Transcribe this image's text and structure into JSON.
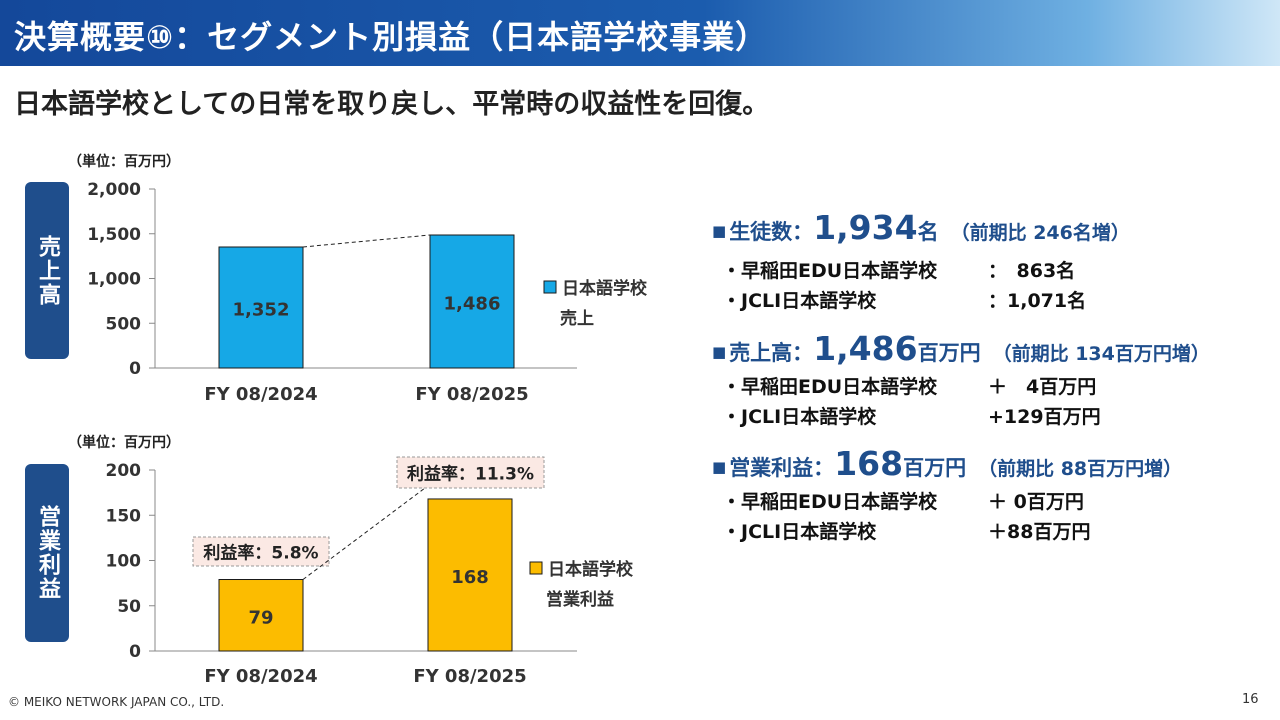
{
  "header": {
    "title": "決算概要⑩：セグメント別損益（日本語学校事業）",
    "subtitle": "日本語学校としての日常を取り戻し、平常時の収益性を回復。"
  },
  "colors": {
    "sales_bar": "#16a8e6",
    "profit_bar": "#fcbc00",
    "accent": "#1f4e8c"
  },
  "chart_data": [
    {
      "type": "bar",
      "unit": "（単位：百万円）",
      "side_label": "売上高",
      "categories": [
        "FY 08/2024",
        "FY 08/2025"
      ],
      "values": [
        1352,
        1486
      ],
      "value_labels": [
        "1,352",
        "1,486"
      ],
      "ylim": [
        0,
        2000
      ],
      "yticks": [
        0,
        500,
        1000,
        1500,
        2000
      ],
      "ytick_labels": [
        "0",
        "500",
        "1,000",
        "1,500",
        "2,000"
      ],
      "legend": [
        "日本語学校",
        "売上"
      ]
    },
    {
      "type": "bar",
      "unit": "（単位：百万円）",
      "side_label": "営業利益",
      "categories": [
        "FY 08/2024",
        "FY 08/2025"
      ],
      "values": [
        79,
        168
      ],
      "value_labels": [
        "79",
        "168"
      ],
      "ylim": [
        0,
        200
      ],
      "yticks": [
        0,
        50,
        100,
        150,
        200
      ],
      "ytick_labels": [
        "0",
        "50",
        "100",
        "150",
        "200"
      ],
      "legend": [
        "日本語学校",
        "営業利益"
      ],
      "annotations": [
        "利益率：5.8%",
        "利益率：11.3%"
      ]
    }
  ],
  "stats": [
    {
      "label": "生徒数：",
      "value": "1,934",
      "unit": "名",
      "compare": "（前期比 246名増）",
      "rows": [
        {
          "name": "・早稲田EDU日本語学校",
          "value": "：　863名"
        },
        {
          "name": "・JCLI日本語学校",
          "value": "：1,071名"
        }
      ]
    },
    {
      "label": "売上高：",
      "value": "1,486",
      "unit": "百万円",
      "compare": "（前期比 134百万円増）",
      "rows": [
        {
          "name": "・早稲田EDU日本語学校",
          "value": "＋　4百万円"
        },
        {
          "name": "・JCLI日本語学校",
          "value": "+129百万円"
        }
      ]
    },
    {
      "label": "営業利益：",
      "value": "168",
      "unit": "百万円",
      "compare": "（前期比 88百万円増）",
      "rows": [
        {
          "name": "・早稲田EDU日本語学校",
          "value": "＋ 0百万円"
        },
        {
          "name": "・JCLI日本語学校",
          "value": "＋88百万円"
        }
      ]
    }
  ],
  "footer": {
    "copyright": "© MEIKO NETWORK JAPAN CO., LTD.",
    "page": "16"
  }
}
